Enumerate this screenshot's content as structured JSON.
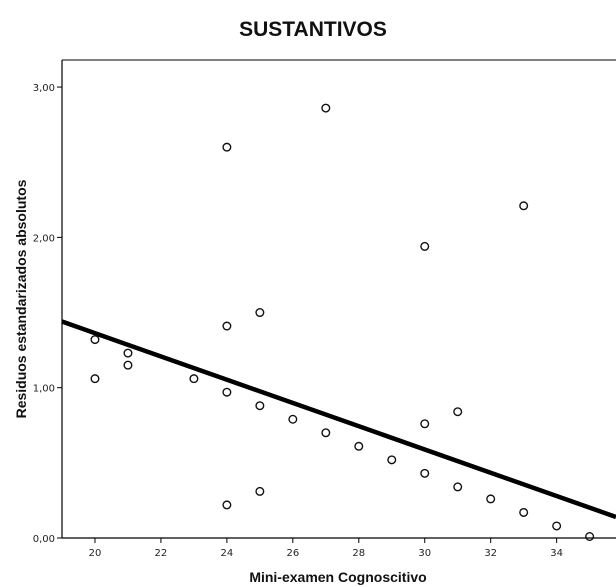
{
  "chart_data": {
    "type": "scatter",
    "title": "SUSTANTIVOS",
    "xlabel": "Mini-examen Cognoscitivo",
    "ylabel": "Residuos estandarizados absolutos",
    "xlim": [
      19.0,
      35.8
    ],
    "ylim": [
      0.0,
      3.18
    ],
    "x_ticks": [
      {
        "value": 20,
        "label": "20"
      },
      {
        "value": 22,
        "label": "22"
      },
      {
        "value": 24,
        "label": "24"
      },
      {
        "value": 26,
        "label": "26"
      },
      {
        "value": 28,
        "label": "28"
      },
      {
        "value": 30,
        "label": "30"
      },
      {
        "value": 32,
        "label": "32"
      },
      {
        "value": 34,
        "label": "34"
      }
    ],
    "y_ticks": [
      {
        "value": 0,
        "label": "0,00"
      },
      {
        "value": 1,
        "label": "1,00"
      },
      {
        "value": 2,
        "label": "2,00"
      },
      {
        "value": 3,
        "label": "3,00"
      }
    ],
    "grid": false,
    "points": [
      {
        "x": 20,
        "y": 1.32
      },
      {
        "x": 20,
        "y": 1.06
      },
      {
        "x": 21,
        "y": 1.23
      },
      {
        "x": 21,
        "y": 1.15
      },
      {
        "x": 23,
        "y": 1.06
      },
      {
        "x": 24,
        "y": 2.6
      },
      {
        "x": 24,
        "y": 1.41
      },
      {
        "x": 24,
        "y": 0.97
      },
      {
        "x": 24,
        "y": 0.22
      },
      {
        "x": 25,
        "y": 1.5
      },
      {
        "x": 25,
        "y": 0.88
      },
      {
        "x": 25,
        "y": 0.31
      },
      {
        "x": 26,
        "y": 0.79
      },
      {
        "x": 27,
        "y": 2.86
      },
      {
        "x": 27,
        "y": 0.7
      },
      {
        "x": 28,
        "y": 0.61
      },
      {
        "x": 29,
        "y": 0.52
      },
      {
        "x": 30,
        "y": 1.94
      },
      {
        "x": 30,
        "y": 0.76
      },
      {
        "x": 30,
        "y": 0.43
      },
      {
        "x": 31,
        "y": 0.84
      },
      {
        "x": 31,
        "y": 0.34
      },
      {
        "x": 32,
        "y": 0.26
      },
      {
        "x": 33,
        "y": 2.21
      },
      {
        "x": 33,
        "y": 0.17
      },
      {
        "x": 34,
        "y": 0.08
      },
      {
        "x": 35,
        "y": 0.01
      }
    ],
    "fit_line": {
      "x1": 19.0,
      "y1": 1.44,
      "x2": 35.8,
      "y2": 0.14
    },
    "colors": {
      "point_stroke": "#111111",
      "fit_line": "#000000",
      "axis": "#000000",
      "text": "#111111",
      "background": "#ffffff"
    }
  }
}
